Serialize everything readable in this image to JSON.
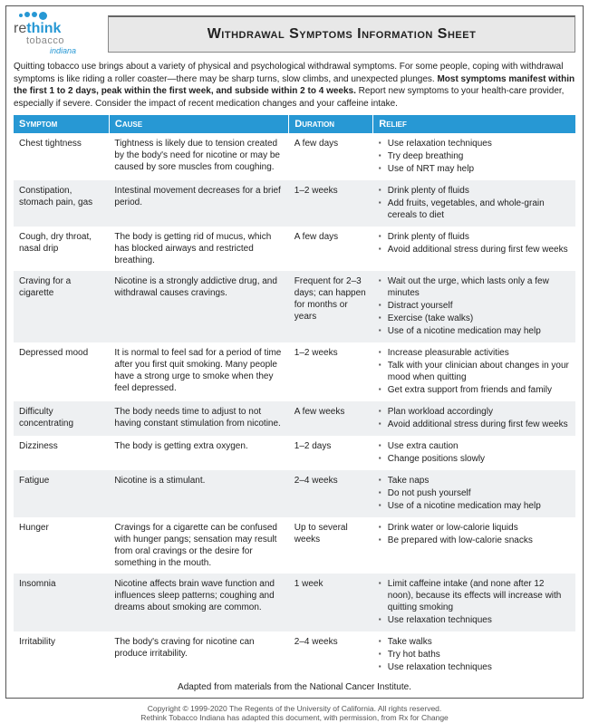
{
  "logo": {
    "line1_a": "re",
    "line1_b": "think",
    "line2": "tobacco",
    "line3": "indiana"
  },
  "title": "Withdrawal Symptoms Information Sheet",
  "intro_part1": "Quitting tobacco use brings about a variety of physical and psychological withdrawal symptoms. For some people, coping with withdrawal symptoms is like riding a roller coaster—there may be sharp turns, slow climbs, and unexpected plunges. ",
  "intro_bold": "Most symptoms manifest within the first 1 to 2 days, peak within the first week, and subside within 2 to 4 weeks.",
  "intro_part2": " Report new symptoms to your health-care provider, especially if severe. Consider the impact of recent medication changes and your caffeine intake.",
  "headers": {
    "c1": "Symptom",
    "c2": "Cause",
    "c3": "Duration",
    "c4": "Relief"
  },
  "rows": [
    {
      "symptom": "Chest tightness",
      "cause": "Tightness is likely due to tension created by the body's need for nicotine or may be caused by sore muscles from coughing.",
      "duration": "A few days",
      "relief": [
        "Use relaxation techniques",
        "Try deep breathing",
        "Use of NRT may help"
      ]
    },
    {
      "symptom": "Constipation, stomach pain, gas",
      "cause": "Intestinal movement decreases for a brief period.",
      "duration": "1–2 weeks",
      "relief": [
        "Drink plenty of fluids",
        "Add fruits, vegetables, and whole-grain cereals to diet"
      ]
    },
    {
      "symptom": "Cough, dry throat, nasal drip",
      "cause": "The body is getting rid of mucus, which has blocked airways and restricted breathing.",
      "duration": "A few days",
      "relief": [
        "Drink plenty of fluids",
        "Avoid additional stress during first few weeks"
      ]
    },
    {
      "symptom": "Craving for a cigarette",
      "cause": "Nicotine is a strongly addictive drug, and withdrawal causes cravings.",
      "duration": "Frequent for 2–3 days; can happen for months or years",
      "relief": [
        "Wait out the urge, which lasts only a few minutes",
        "Distract yourself",
        "Exercise (take walks)",
        "Use of a nicotine medication may help"
      ]
    },
    {
      "symptom": "Depressed mood",
      "cause": "It is normal to feel sad for a period of time after you first quit smoking. Many people have a strong urge to smoke when they feel depressed.",
      "duration": "1–2 weeks",
      "relief": [
        "Increase pleasurable activities",
        "Talk with your clinician about changes in your mood when quitting",
        "Get extra support from friends and family"
      ]
    },
    {
      "symptom": "Difficulty concentrating",
      "cause": "The body needs time to adjust to not having constant stimulation from nicotine.",
      "duration": "A few weeks",
      "relief": [
        "Plan workload accordingly",
        "Avoid additional stress during first few weeks"
      ]
    },
    {
      "symptom": "Dizziness",
      "cause": "The body is getting extra oxygen.",
      "duration": "1–2 days",
      "relief": [
        "Use extra caution",
        "Change positions slowly"
      ]
    },
    {
      "symptom": "Fatigue",
      "cause": "Nicotine is a stimulant.",
      "duration": "2–4 weeks",
      "relief": [
        "Take naps",
        "Do not push yourself",
        "Use of a nicotine medication may help"
      ]
    },
    {
      "symptom": "Hunger",
      "cause": "Cravings for a cigarette can be confused with hunger pangs; sensation may result from oral cravings or the desire for something in the mouth.",
      "duration": "Up to several weeks",
      "relief": [
        "Drink water or low-calorie liquids",
        "Be prepared with low-calorie snacks"
      ]
    },
    {
      "symptom": "Insomnia",
      "cause": "Nicotine affects brain wave function and influences sleep patterns; coughing and dreams about smoking are common.",
      "duration": "1 week",
      "relief": [
        "Limit caffeine intake (and none after 12 noon), because its effects will increase with quitting smoking",
        "Use relaxation techniques"
      ]
    },
    {
      "symptom": "Irritability",
      "cause": "The body's craving for nicotine can produce irritability.",
      "duration": "2–4 weeks",
      "relief": [
        "Take walks",
        "Try hot baths",
        "Use relaxation techniques"
      ]
    }
  ],
  "adapted": "Adapted from materials from the National Cancer Institute.",
  "footer1": "Copyright © 1999-2020 The Regents of the University of California. All rights reserved.",
  "footer2": "Rethink Tobacco Indiana has adapted this document, with permission, from Rx for Change"
}
